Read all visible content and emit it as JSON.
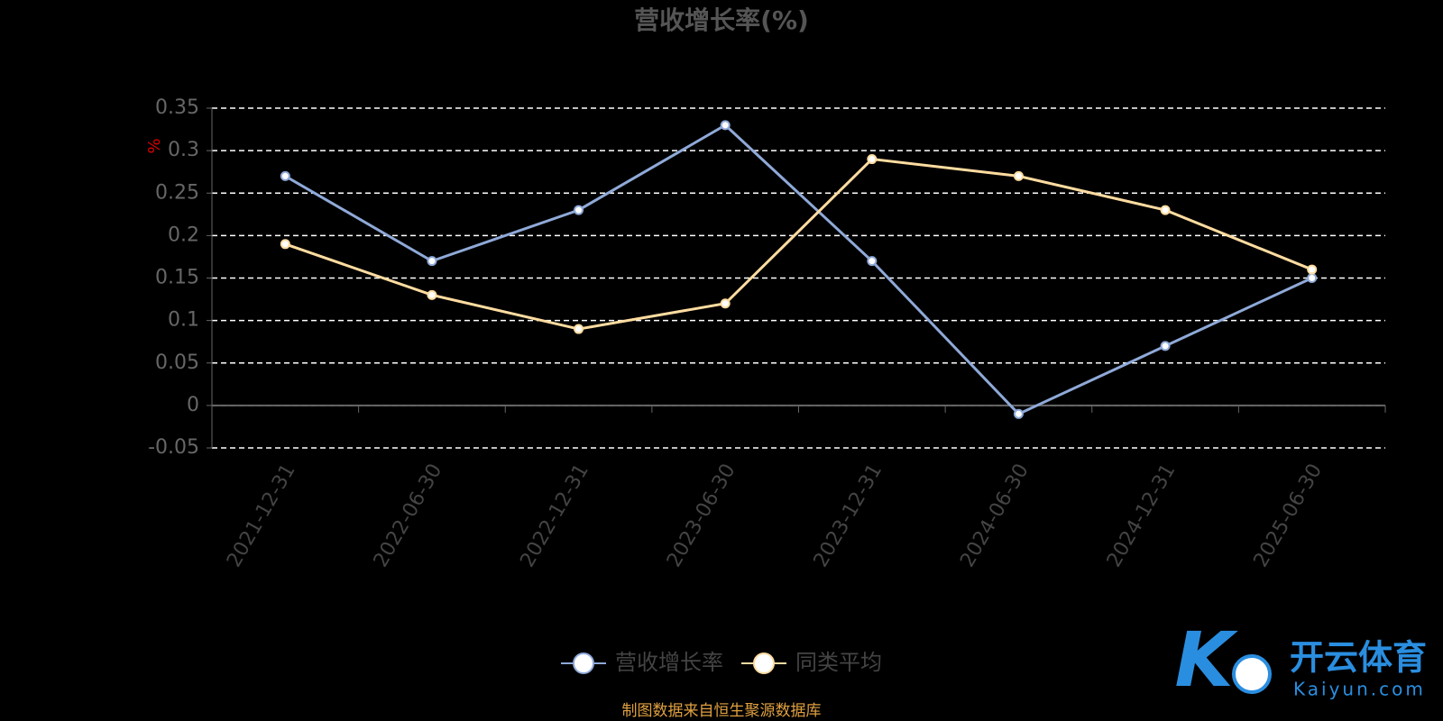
{
  "chart_data": {
    "type": "line",
    "title": "营收增长率(%)",
    "y_label": "%",
    "categories": [
      "2021-12-31",
      "2022-06-30",
      "2022-12-31",
      "2023-06-30",
      "2023-12-31",
      "2024-06-30",
      "2024-12-31",
      "2025-06-30"
    ],
    "series": [
      {
        "name": "营收增长率",
        "color": "#8fa9d8",
        "values": [
          0.27,
          0.17,
          0.23,
          0.33,
          0.17,
          -0.01,
          0.07,
          0.15
        ]
      },
      {
        "name": "同类平均",
        "color": "#ffdca0",
        "values": [
          0.19,
          0.13,
          0.09,
          0.12,
          0.29,
          0.27,
          0.23,
          0.16
        ]
      }
    ],
    "ylim": [
      -0.05,
      0.35
    ],
    "yticks": [
      -0.05,
      0,
      0.05,
      0.1,
      0.15,
      0.2,
      0.25,
      0.3,
      0.35
    ],
    "grid": true,
    "legend": "bottom",
    "source": "制图数据来自恒生聚源数据库",
    "watermark": {
      "brand": "开云体育",
      "site": "Kaiyun.com"
    }
  }
}
